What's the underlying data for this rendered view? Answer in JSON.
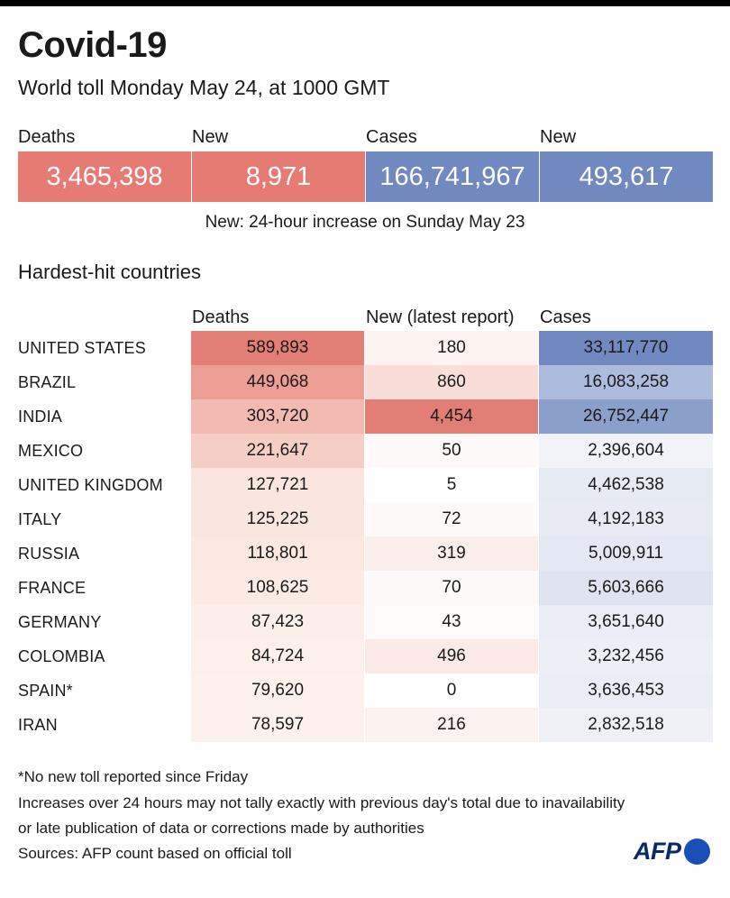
{
  "title": "Covid-19",
  "subtitle": "World toll Monday May 24,  at 1000 GMT",
  "stats": [
    {
      "label": "Deaths",
      "value": "3,465,398",
      "color": "#e67b73"
    },
    {
      "label": "New",
      "value": "8,971",
      "color": "#e67b73"
    },
    {
      "label": "Cases",
      "value": "166,741,967",
      "color": "#7089c0"
    },
    {
      "label": "New",
      "value": "493,617",
      "color": "#7089c0"
    }
  ],
  "note": "New: 24-hour increase on Sunday May 23",
  "section_title": "Hardest-hit countries",
  "columns": {
    "deaths": "Deaths",
    "new": "New (latest report)",
    "cases": "Cases"
  },
  "chart_data": {
    "type": "table",
    "rows": [
      {
        "country": "UNITED STATES",
        "deaths": "589,893",
        "new": "180",
        "cases": "33,117,770",
        "deaths_bg": "#e37e77",
        "new_bg": "#fdf3f1",
        "cases_bg": "#7189c0"
      },
      {
        "country": "BRAZIL",
        "deaths": "449,068",
        "new": "860",
        "cases": "16,083,258",
        "deaths_bg": "#ed9e94",
        "new_bg": "#f9ddd6",
        "cases_bg": "#adbcdc"
      },
      {
        "country": "INDIA",
        "deaths": "303,720",
        "new": "4,454",
        "cases": "26,752,447",
        "deaths_bg": "#f2bab0",
        "new_bg": "#e37e77",
        "cases_bg": "#8b9fcb"
      },
      {
        "country": "MEXICO",
        "deaths": "221,647",
        "new": "50",
        "cases": "2,396,604",
        "deaths_bg": "#f6cfc4",
        "new_bg": "#fefaf9",
        "cases_bg": "#f1f3f8"
      },
      {
        "country": "UNITED KINGDOM",
        "deaths": "127,721",
        "new": "5",
        "cases": "4,462,538",
        "deaths_bg": "#fbe5de",
        "new_bg": "#ffffff",
        "cases_bg": "#e6eaf3"
      },
      {
        "country": "ITALY",
        "deaths": "125,225",
        "new": "72",
        "cases": "4,192,183",
        "deaths_bg": "#fbe6df",
        "new_bg": "#fefaf9",
        "cases_bg": "#e8ebf4"
      },
      {
        "country": "RUSSIA",
        "deaths": "118,801",
        "new": "319",
        "cases": "5,009,911",
        "deaths_bg": "#fbe8e1",
        "new_bg": "#fcefeb",
        "cases_bg": "#e3e8f2"
      },
      {
        "country": "FRANCE",
        "deaths": "108,625",
        "new": "70",
        "cases": "5,603,666",
        "deaths_bg": "#fcebe5",
        "new_bg": "#fefaf9",
        "cases_bg": "#dfe4f0"
      },
      {
        "country": "GERMANY",
        "deaths": "87,423",
        "new": "43",
        "cases": "3,651,640",
        "deaths_bg": "#fcefea",
        "new_bg": "#fefbfa",
        "cases_bg": "#eaedf5"
      },
      {
        "country": "COLOMBIA",
        "deaths": "84,724",
        "new": "496",
        "cases": "3,232,456",
        "deaths_bg": "#fdf0eb",
        "new_bg": "#fbeae5",
        "cases_bg": "#eceff6"
      },
      {
        "country": "SPAIN*",
        "deaths": "79,620",
        "new": "0",
        "cases": "3,636,453",
        "deaths_bg": "#fdf1ec",
        "new_bg": "#ffffff",
        "cases_bg": "#eaedf5"
      },
      {
        "country": "IRAN",
        "deaths": "78,597",
        "new": "216",
        "cases": "2,832,518",
        "deaths_bg": "#fdf1ed",
        "new_bg": "#fcf2ef",
        "cases_bg": "#eef0f6"
      }
    ]
  },
  "footer": {
    "line1": "*No new toll reported since Friday",
    "line2": "Increases over 24 hours may not tally exactly with previous day's total due to inavailability",
    "line3": "or late publication of data or corrections made by authorities",
    "line4": "Sources: AFP count based on official toll"
  },
  "logo": {
    "text": "AFP",
    "icon": "afp-dot-icon",
    "dot_color": "#1b4fb8"
  }
}
